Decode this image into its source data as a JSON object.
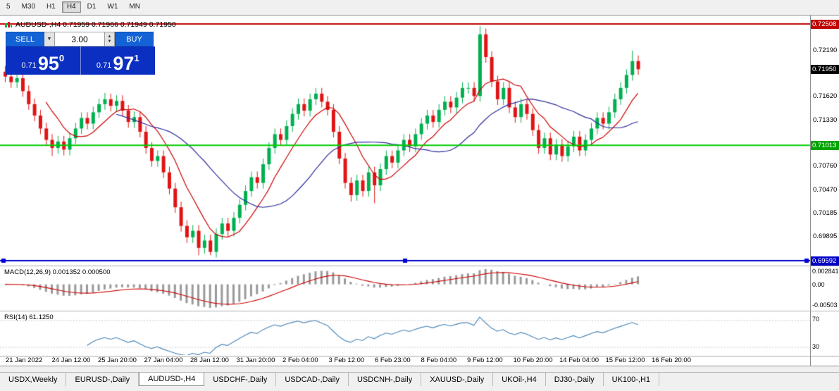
{
  "toolbar": {
    "periods": [
      "5",
      "M30",
      "H1",
      "H4",
      "D1",
      "W1",
      "MN"
    ],
    "active_period": "H4"
  },
  "chart": {
    "title": "AUDUSD-,H4  0.71959 0.71966 0.71949 0.71950"
  },
  "trade_widget": {
    "sell_label": "SELL",
    "buy_label": "BUY",
    "volume": "3.00",
    "sell_price": {
      "prefix": "0.71",
      "big": "95",
      "sup": "0"
    },
    "buy_price": {
      "prefix": "0.71",
      "big": "97",
      "sup": "1"
    }
  },
  "icons": {
    "dropdown": "▼",
    "spin_up": "▲",
    "spin_down": "▼"
  },
  "chart_data": {
    "type": "candlestick",
    "symbol": "AUDUSD-",
    "timeframe": "H4",
    "ohlc": {
      "open": "0.71959",
      "high": "0.71966",
      "low": "0.71949",
      "close": "0.71950"
    },
    "y_range": [
      0.6954,
      0.7256
    ],
    "candles": {
      "first_open": 0.7192,
      "default_wick": 0.0007,
      "closes": [
        0.7186,
        0.7179,
        0.7184,
        0.7168,
        0.7152,
        0.7138,
        0.7122,
        0.7108,
        0.7098,
        0.7106,
        0.7096,
        0.711,
        0.7122,
        0.7135,
        0.7128,
        0.7142,
        0.7152,
        0.7158,
        0.715,
        0.7156,
        0.7144,
        0.713,
        0.7136,
        0.7118,
        0.7098,
        0.7082,
        0.7088,
        0.7068,
        0.7048,
        0.7025,
        0.7002,
        0.6988,
        0.6996,
        0.6975,
        0.6984,
        0.697,
        0.6992,
        0.7005,
        0.6996,
        0.7012,
        0.7028,
        0.7045,
        0.7062,
        0.7055,
        0.7078,
        0.7098,
        0.7115,
        0.7108,
        0.7125,
        0.714,
        0.7152,
        0.7144,
        0.7158,
        0.7165,
        0.7155,
        0.7145,
        0.7118,
        0.7085,
        0.7055,
        0.704,
        0.7058,
        0.7045,
        0.7068,
        0.7052,
        0.7072,
        0.7088,
        0.708,
        0.7095,
        0.7108,
        0.71,
        0.7115,
        0.7128,
        0.7138,
        0.713,
        0.7145,
        0.7155,
        0.7148,
        0.716,
        0.7172,
        0.7172,
        0.7162,
        0.7238,
        0.721,
        0.718,
        0.7158,
        0.7172,
        0.7148,
        0.7136,
        0.7152,
        0.714,
        0.712,
        0.7098,
        0.711,
        0.709,
        0.7102,
        0.7088,
        0.71,
        0.7112,
        0.7095,
        0.7108,
        0.7122,
        0.7135,
        0.7128,
        0.7142,
        0.7158,
        0.7172,
        0.7188,
        0.7205,
        0.7195
      ],
      "wick_overrides": {
        "8": {
          "low": 0.7088
        },
        "17": {
          "high": 0.7166
        },
        "33": {
          "low": 0.6966
        },
        "35": {
          "low": 0.6966
        },
        "59": {
          "low": 0.7032
        },
        "63": {
          "low": 0.703
        },
        "81": {
          "high": 0.7248
        },
        "107": {
          "high": 0.7218
        }
      }
    },
    "ma_fast_period": 8,
    "ma_slow_period": 20,
    "x_labels": [
      "21 Jan 2022",
      "24 Jan 12:00",
      "25 Jan 20:00",
      "27 Jan 04:00",
      "28 Jan 12:00",
      "31 Jan 20:00",
      "2 Feb 04:00",
      "3 Feb 12:00",
      "6 Feb 23:00",
      "8 Feb 04:00",
      "9 Feb 12:00",
      "10 Feb 20:00",
      "14 Feb 04:00",
      "15 Feb 12:00",
      "16 Feb 20:00"
    ],
    "y_ticks": [
      {
        "value": 0.7219,
        "label": "0.72190"
      },
      {
        "value": 0.7162,
        "label": "0.71620"
      },
      {
        "value": 0.7133,
        "label": "0.71330"
      },
      {
        "value": 0.7076,
        "label": "0.70760"
      },
      {
        "value": 0.7047,
        "label": "0.70470"
      },
      {
        "value": 0.70185,
        "label": "0.70185"
      },
      {
        "value": 0.69895,
        "label": "0.69895"
      }
    ],
    "price_tags": [
      {
        "value": 0.72508,
        "label": "0.72508",
        "bg": "#c00000",
        "name": "resistance-price-tag"
      },
      {
        "value": 0.7195,
        "label": "0.71950",
        "bg": "#000000",
        "name": "current-price-tag"
      },
      {
        "value": 0.71013,
        "label": "0.71013",
        "bg": "#00a400",
        "name": "support-price-tag"
      },
      {
        "value": 0.69592,
        "label": "0.69592",
        "bg": "#0000c8",
        "name": "blue-line-price-tag"
      }
    ],
    "hlines": [
      {
        "price": 0.72508,
        "color": "#c00000",
        "width": 2,
        "handles": false
      },
      {
        "price": 0.71013,
        "color": "#00cc00",
        "width": 2,
        "handles": false
      },
      {
        "price": 0.69592,
        "color": "#0000d2",
        "width": 2,
        "handles": true
      }
    ],
    "macd": {
      "title": "MACD(12,26,9) 0.001352 0.000500",
      "params": [
        12,
        26,
        9
      ],
      "scale_top": "0.002841",
      "scale_zero": "0.00",
      "scale_bottom": "-0.00503"
    },
    "rsi": {
      "title": "RSI(14) 61.1250",
      "period": 14,
      "value": "61.1250",
      "levels": [
        70,
        30
      ]
    }
  },
  "tabs": {
    "items": [
      "USDX,Weekly",
      "EURUSD-,Daily",
      "AUDUSD-,H4",
      "USDCHF-,Daily",
      "USDCAD-,Daily",
      "USDCNH-,Daily",
      "XAUUSD-,Daily",
      "UKOil-,H4",
      "DJ30-,Daily",
      "UK100-,H1"
    ],
    "active_index": 2
  },
  "colors": {
    "bull": "#00b050",
    "bear": "#e01414",
    "ma_fast": "#cc0000",
    "ma_slow": "#2b2b9e",
    "macd_hist": "#999999",
    "macd_signal": "#cc0000",
    "rsi_line": "#4682b4",
    "buy_sell_button": "#1463d6",
    "price_panel": "#0b2fc0"
  }
}
